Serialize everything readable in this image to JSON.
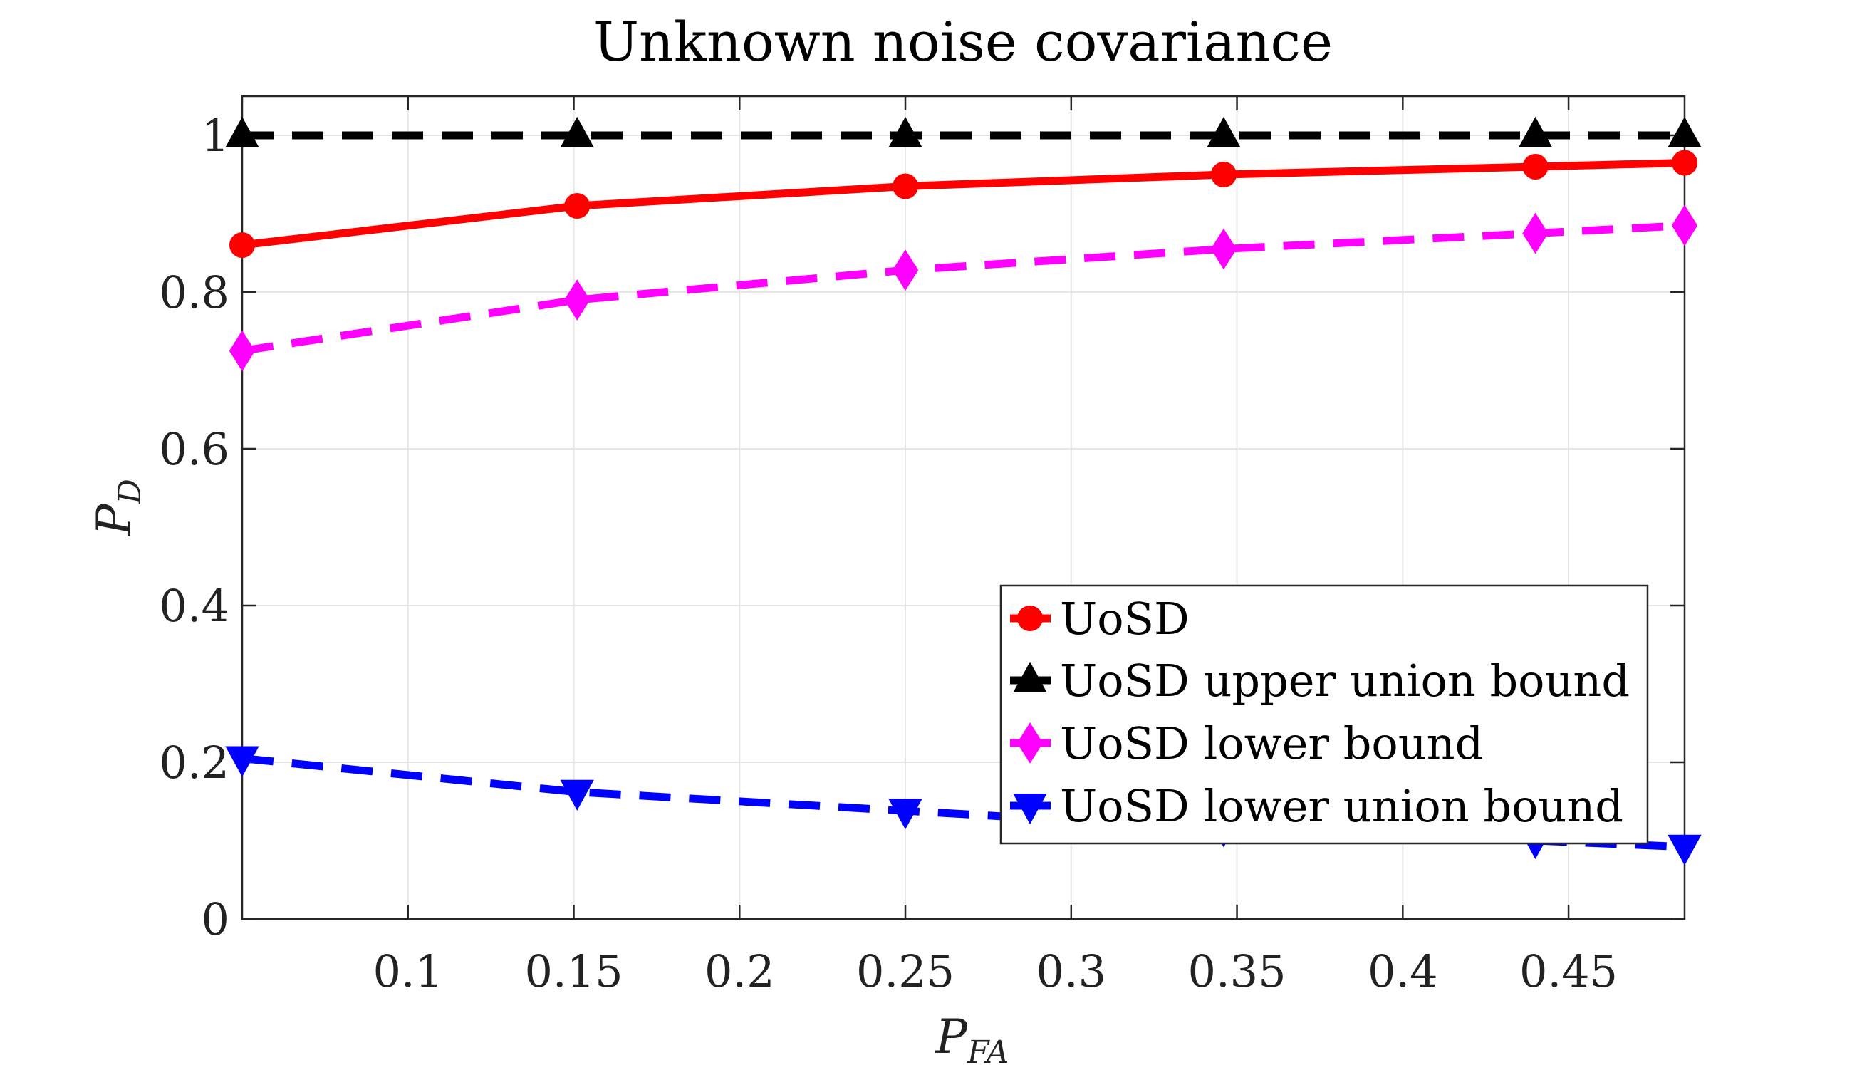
{
  "chart_data": {
    "type": "line",
    "title": "Unknown noise covariance",
    "xlabel": {
      "main": "P",
      "sub": "FA"
    },
    "ylabel": {
      "main": "P",
      "sub": "D"
    },
    "xlim": [
      0.05,
      0.485
    ],
    "ylim": [
      0,
      1.05
    ],
    "grid": true,
    "legend_position": "lower-right",
    "xticks": [
      0.1,
      0.15,
      0.2,
      0.25,
      0.3,
      0.35,
      0.4,
      0.45
    ],
    "xtick_labels": [
      "0.1",
      "0.15",
      "0.2",
      "0.25",
      "0.3",
      "0.35",
      "0.4",
      "0.45"
    ],
    "yticks": [
      0,
      0.2,
      0.4,
      0.6,
      0.8,
      1
    ],
    "ytick_labels": [
      "0",
      "0.2",
      "0.4",
      "0.6",
      "0.8",
      "1"
    ],
    "x": [
      0.05,
      0.151,
      0.25,
      0.346,
      0.44,
      0.485
    ],
    "series": [
      {
        "name": "UoSD",
        "color": "#ff0000",
        "dash": "solid",
        "marker": "circle",
        "values": [
          0.86,
          0.91,
          0.935,
          0.95,
          0.96,
          0.965
        ]
      },
      {
        "name": "UoSD upper union bound",
        "color": "#000000",
        "dash": "dashed",
        "marker": "triangle-up",
        "values": [
          1.0,
          1.0,
          1.0,
          1.0,
          1.0,
          1.0
        ]
      },
      {
        "name": "UoSD lower bound",
        "color": "#ff00ff",
        "dash": "dashed",
        "marker": "diamond",
        "values": [
          0.725,
          0.79,
          0.828,
          0.855,
          0.875,
          0.885
        ]
      },
      {
        "name": "UoSD lower union bound",
        "color": "#0000ff",
        "dash": "dashed",
        "marker": "triangle-down",
        "values": [
          0.205,
          0.162,
          0.138,
          0.115,
          0.1,
          0.092
        ]
      }
    ]
  }
}
